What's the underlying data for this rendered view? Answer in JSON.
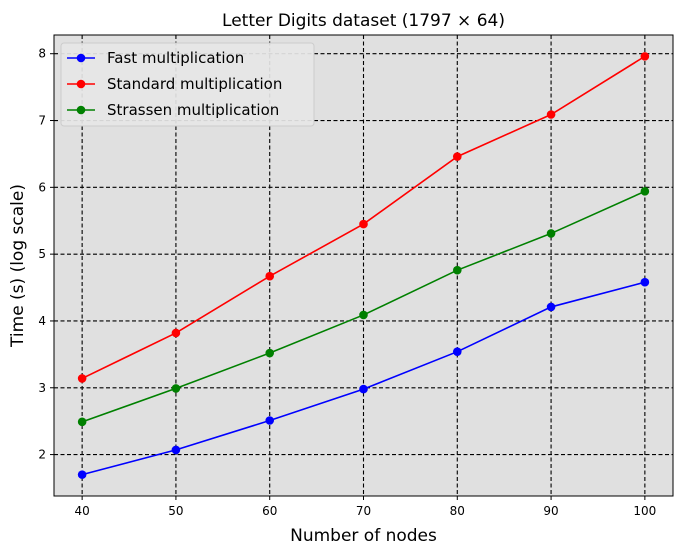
{
  "chart_data": {
    "type": "line",
    "title": "Letter Digits dataset (1797 × 64)",
    "xlabel": "Number of nodes",
    "ylabel": "Time (s) (log scale)",
    "x": [
      40,
      50,
      60,
      70,
      80,
      90,
      100
    ],
    "x_ticks": [
      "40",
      "50",
      "60",
      "70",
      "80",
      "90",
      "100"
    ],
    "y_ticks": [
      "2",
      "3",
      "4",
      "5",
      "6",
      "7",
      "8"
    ],
    "xlim": [
      37,
      103
    ],
    "ylim": [
      1.38,
      8.28
    ],
    "grid": true,
    "legend_position": "upper-left",
    "series": [
      {
        "name": "Fast multiplication",
        "color": "#0000ff",
        "values": [
          1.7,
          2.07,
          2.51,
          2.98,
          3.54,
          4.21,
          4.58
        ]
      },
      {
        "name": "Standard multiplication",
        "color": "#ff0000",
        "values": [
          3.14,
          3.82,
          4.67,
          5.45,
          6.46,
          7.09,
          7.96
        ]
      },
      {
        "name": "Strassen multiplication",
        "color": "#008000",
        "values": [
          2.49,
          2.99,
          3.52,
          4.09,
          4.76,
          5.31,
          5.94
        ]
      }
    ]
  },
  "colors": {
    "plot_background": "#e0e0e0",
    "grid": "#000000"
  }
}
